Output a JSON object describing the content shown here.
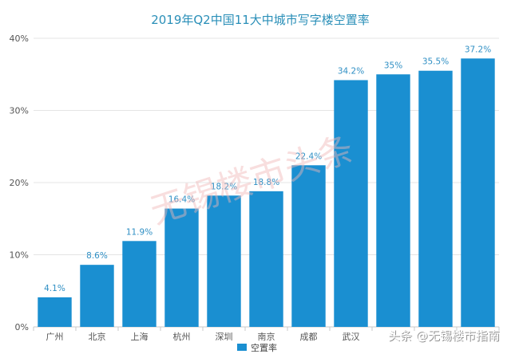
{
  "chart_data": {
    "type": "bar",
    "title": "2019年Q2中国11大中城市写字楼空置率",
    "categories": [
      "广州",
      "北京",
      "上海",
      "杭州",
      "深圳",
      "南京",
      "成都",
      "武汉",
      "",
      "",
      ""
    ],
    "series": [
      {
        "name": "空置率",
        "values": [
          4.1,
          8.6,
          11.9,
          16.4,
          18.2,
          18.8,
          22.4,
          34.2,
          35,
          35.5,
          37.2
        ],
        "labels": [
          "4.1%",
          "8.6%",
          "11.9%",
          "16.4%",
          "18.2%",
          "18.8%",
          "22.4%",
          "34.2%",
          "35%",
          "35.5%",
          "37.2%"
        ]
      }
    ],
    "yticks": [
      "0%",
      "10%",
      "20%",
      "30%",
      "40%"
    ],
    "ylim": [
      0,
      40
    ],
    "grid": true,
    "legend": "bottom-center",
    "colors": {
      "bar": "#1a8fd1"
    }
  },
  "watermark": "无锡楼市头条",
  "source_credit": "头条 @无锡楼市指南"
}
